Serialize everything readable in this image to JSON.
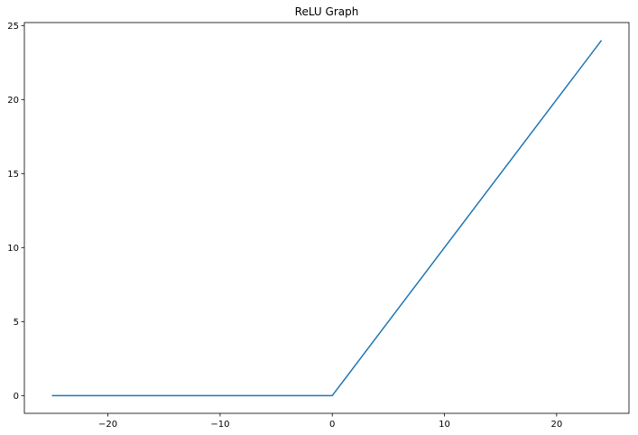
{
  "chart_data": {
    "type": "line",
    "title": "ReLU Graph",
    "xlabel": "",
    "ylabel": "",
    "xlim": [
      -27.45,
      26.45
    ],
    "ylim": [
      -1.2,
      25.2
    ],
    "x_ticks": [
      -20,
      -10,
      0,
      10,
      20
    ],
    "x_tick_labels": [
      "−20",
      "−10",
      "0",
      "10",
      "20"
    ],
    "y_ticks": [
      0,
      5,
      10,
      15,
      20,
      25
    ],
    "y_tick_labels": [
      "0",
      "5",
      "10",
      "15",
      "20",
      "25"
    ],
    "grid": false,
    "legend": "none",
    "series": [
      {
        "color": "#1f77b4",
        "x": [
          -25,
          0,
          24
        ],
        "y": [
          0,
          0,
          24
        ]
      }
    ]
  }
}
